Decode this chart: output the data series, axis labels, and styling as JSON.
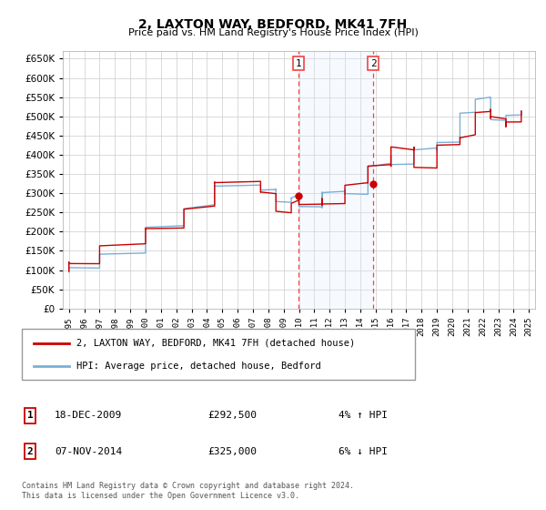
{
  "title": "2, LAXTON WAY, BEDFORD, MK41 7FH",
  "subtitle": "Price paid vs. HM Land Registry's House Price Index (HPI)",
  "legend_line1": "2, LAXTON WAY, BEDFORD, MK41 7FH (detached house)",
  "legend_line2": "HPI: Average price, detached house, Bedford",
  "transaction1_date": "18-DEC-2009",
  "transaction1_price": "£292,500",
  "transaction1_hpi": "4% ↑ HPI",
  "transaction1_year": 2009.96,
  "transaction1_value": 292500,
  "transaction2_date": "07-NOV-2014",
  "transaction2_price": "£325,000",
  "transaction2_hpi": "6% ↓ HPI",
  "transaction2_year": 2014.85,
  "transaction2_value": 325000,
  "ylim": [
    0,
    670000
  ],
  "yticks": [
    0,
    50000,
    100000,
    150000,
    200000,
    250000,
    300000,
    350000,
    400000,
    450000,
    500000,
    550000,
    600000,
    650000
  ],
  "footer": "Contains HM Land Registry data © Crown copyright and database right 2024.\nThis data is licensed under the Open Government Licence v3.0.",
  "hpi_color": "#7bafd4",
  "price_color": "#cc0000",
  "shade_color": "#ddeeff",
  "dashed_color": "#ee4444",
  "bg_color": "#ffffff",
  "grid_color": "#cccccc"
}
